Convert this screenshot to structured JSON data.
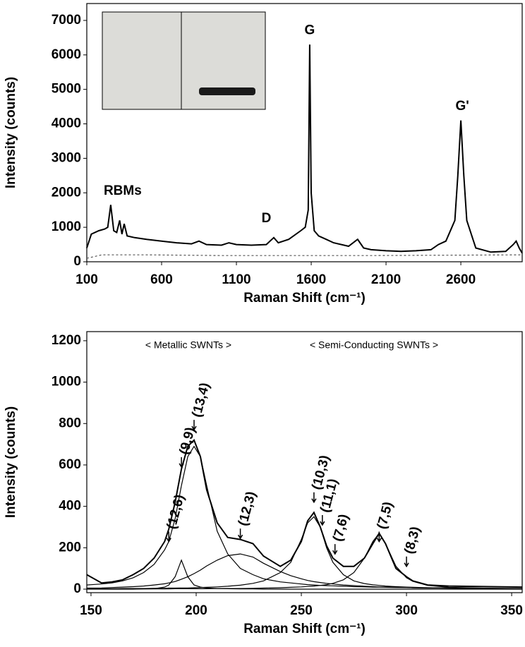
{
  "chart_data": [
    {
      "type": "line",
      "x_label": "Raman Shift (cm⁻¹)",
      "y_label": "Intensity (counts)",
      "xlim": [
        100,
        3010
      ],
      "ylim": [
        0,
        7490
      ],
      "xticks": [
        100,
        600,
        1100,
        1600,
        2100,
        2600
      ],
      "yticks": [
        0,
        1000,
        2000,
        3000,
        4000,
        5000,
        6000,
        7000
      ],
      "series": [
        {
          "color": "#000000",
          "dash": false,
          "x": [
            100,
            130,
            180,
            220,
            240,
            260,
            280,
            300,
            320,
            335,
            350,
            370,
            420,
            500,
            600,
            700,
            800,
            850,
            900,
            1000,
            1050,
            1100,
            1200,
            1300,
            1350,
            1380,
            1450,
            1530,
            1560,
            1580,
            1590,
            1600,
            1620,
            1650,
            1700,
            1750,
            1850,
            1910,
            1950,
            2000,
            2100,
            2200,
            2300,
            2400,
            2450,
            2500,
            2560,
            2580,
            2600,
            2620,
            2640,
            2700,
            2800,
            2900,
            2950,
            2970,
            2990,
            3010
          ],
          "values": [
            400,
            800,
            900,
            950,
            1000,
            1650,
            900,
            850,
            1200,
            800,
            1100,
            750,
            700,
            650,
            600,
            550,
            520,
            600,
            500,
            480,
            550,
            500,
            480,
            500,
            700,
            550,
            650,
            900,
            1000,
            1500,
            6300,
            2000,
            900,
            750,
            650,
            550,
            450,
            650,
            400,
            350,
            320,
            300,
            320,
            350,
            500,
            600,
            1200,
            2500,
            4100,
            2500,
            1200,
            400,
            280,
            300,
            500,
            600,
            400,
            250
          ]
        },
        {
          "color": "#555555",
          "dash": true,
          "x": [
            100,
            200,
            500,
            1000,
            2000,
            3010
          ],
          "values": [
            100,
            200,
            200,
            180,
            180,
            200
          ]
        }
      ],
      "annotations": [
        {
          "text": "RBMs",
          "x": 340,
          "y": 2050
        },
        {
          "text": "D",
          "x": 1300,
          "y": 1250
        },
        {
          "text": "G",
          "x": 1590,
          "y": 6700
        },
        {
          "text": "G'",
          "x": 2610,
          "y": 4500
        }
      ]
    },
    {
      "type": "line",
      "x_label": "Raman Shift (cm⁻¹)",
      "y_label": "Intensity (counts)",
      "group_labels": [
        "< Metallic SWNTs >",
        "< Semi-Conducting SWNTs >"
      ],
      "xlim": [
        148,
        355
      ],
      "ylim": [
        -17,
        1244
      ],
      "xticks": [
        150,
        200,
        250,
        300,
        350
      ],
      "yticks": [
        0,
        200,
        400,
        600,
        800,
        1000,
        1200
      ],
      "x": [
        148,
        155,
        160,
        165,
        170,
        175,
        180,
        185,
        187,
        190,
        193,
        196,
        199,
        202,
        205,
        210,
        215,
        221,
        227,
        232,
        240,
        245,
        250,
        253,
        256,
        259,
        262,
        265,
        270,
        275,
        280,
        284,
        287,
        290,
        295,
        300,
        303,
        310,
        320,
        340,
        355
      ],
      "series": [
        {
          "color": "#000000",
          "values": [
            70,
            30,
            35,
            45,
            70,
            100,
            150,
            230,
            290,
            420,
            580,
            690,
            720,
            640,
            480,
            320,
            250,
            240,
            220,
            160,
            110,
            140,
            230,
            330,
            370,
            300,
            210,
            150,
            110,
            110,
            150,
            220,
            270,
            220,
            100,
            60,
            40,
            20,
            15,
            12,
            10
          ]
        },
        {
          "color": "#000000",
          "values": [
            20,
            25,
            30,
            40,
            55,
            80,
            120,
            190,
            230,
            340,
            500,
            640,
            690,
            640,
            500,
            280,
            170,
            100,
            70,
            50,
            35,
            30,
            25,
            22,
            20,
            18,
            17,
            16,
            14,
            12,
            11,
            10,
            10,
            9,
            8,
            8,
            7,
            6,
            5,
            4,
            3
          ]
        },
        {
          "color": "#000000",
          "values": [
            5,
            6,
            8,
            10,
            12,
            15,
            20,
            26,
            30,
            37,
            48,
            60,
            75,
            92,
            112,
            140,
            162,
            170,
            155,
            125,
            85,
            65,
            50,
            42,
            36,
            32,
            28,
            25,
            20,
            17,
            14,
            12,
            11,
            10,
            9,
            8,
            7,
            6,
            5,
            3,
            3
          ]
        },
        {
          "color": "#000000",
          "values": [
            2,
            2,
            2,
            3,
            3,
            3,
            4,
            4,
            5,
            5,
            6,
            6,
            7,
            8,
            9,
            11,
            14,
            19,
            28,
            40,
            80,
            130,
            240,
            320,
            350,
            300,
            200,
            130,
            70,
            40,
            27,
            21,
            18,
            15,
            12,
            10,
            9,
            7,
            5,
            3,
            2
          ]
        },
        {
          "color": "#000000",
          "values": [
            1,
            1,
            1,
            1,
            1,
            1,
            1,
            1,
            1,
            2,
            2,
            2,
            2,
            2,
            2,
            3,
            3,
            3,
            4,
            5,
            7,
            9,
            11,
            13,
            15,
            18,
            22,
            28,
            45,
            80,
            150,
            230,
            270,
            220,
            110,
            55,
            38,
            18,
            9,
            4,
            2
          ]
        },
        {
          "color": "#000000",
          "values": [
            0,
            0,
            0,
            0,
            0,
            1,
            2,
            10,
            20,
            60,
            140,
            60,
            20,
            10,
            6,
            3,
            2,
            1,
            1,
            0,
            0,
            0,
            0,
            0,
            0,
            0,
            0,
            0,
            0,
            0,
            0,
            0,
            0,
            0,
            0,
            0,
            0,
            0,
            0,
            0,
            0
          ]
        }
      ],
      "annotations": [
        {
          "text": "(12,6)",
          "x": 187,
          "y": 230
        },
        {
          "text": "(9,9)",
          "x": 193,
          "y": 590
        },
        {
          "text": "(13,4)",
          "x": 199,
          "y": 770
        },
        {
          "text": "(12,3)",
          "x": 221,
          "y": 245
        },
        {
          "text": "(10,3)",
          "x": 256,
          "y": 420
        },
        {
          "text": "(11,1)",
          "x": 260,
          "y": 310
        },
        {
          "text": "(7,6)",
          "x": 266,
          "y": 170
        },
        {
          "text": "(7,5)",
          "x": 287,
          "y": 230
        },
        {
          "text": "(8,3)",
          "x": 300,
          "y": 110
        }
      ]
    }
  ]
}
